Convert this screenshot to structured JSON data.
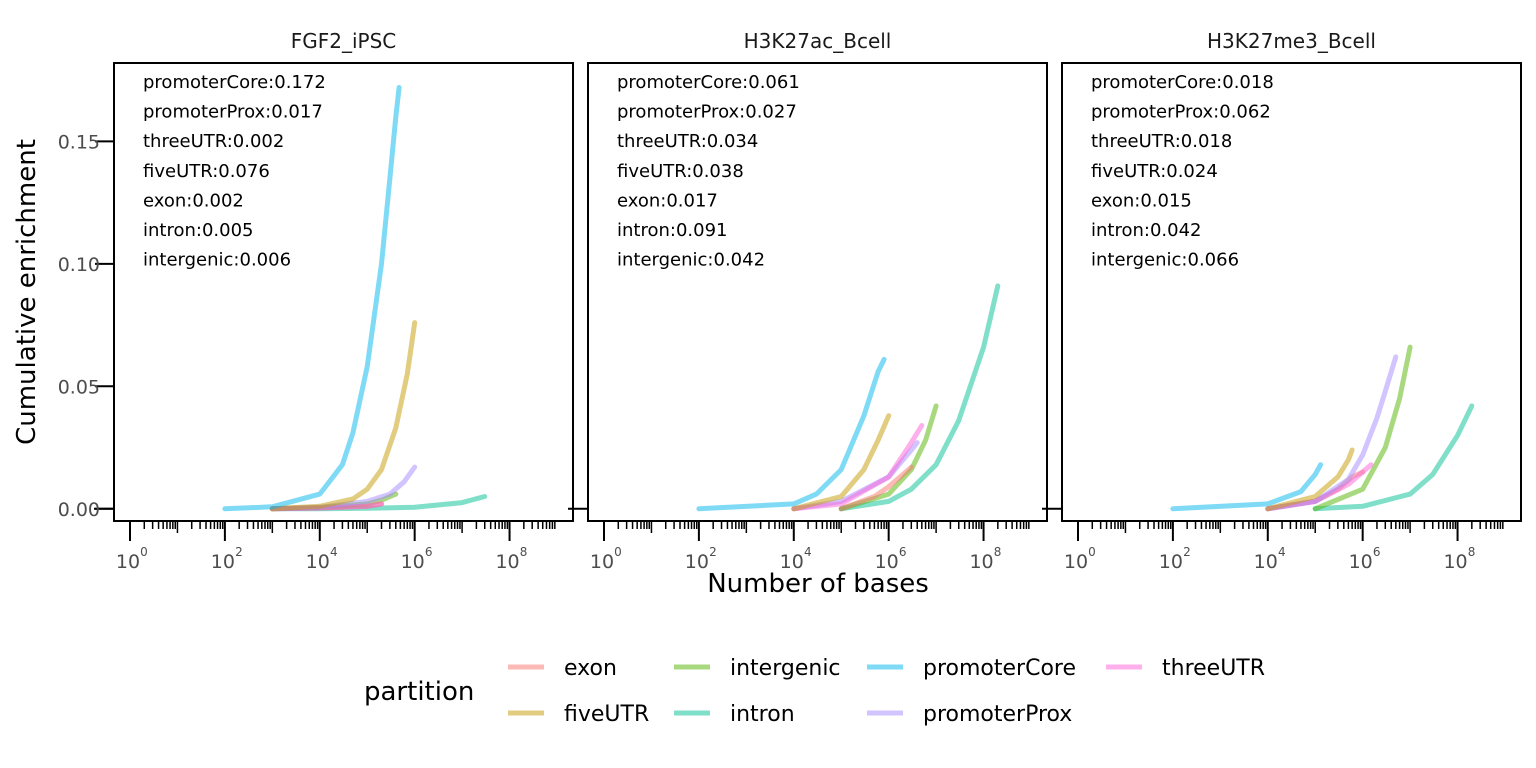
{
  "chart_data": {
    "type": "line",
    "xlabel": "Number of bases",
    "ylabel": "Cumulative enrichment",
    "x_scale": "log10",
    "xlim": [
      1,
      1000000000
    ],
    "ylim": [
      -0.005,
      0.182
    ],
    "x_ticks": [
      1,
      100,
      10000,
      1000000,
      100000000
    ],
    "x_tick_bases": [
      "10",
      "10",
      "10",
      "10",
      "10"
    ],
    "x_tick_exponents": [
      "0",
      "2",
      "4",
      "6",
      "8"
    ],
    "y_ticks": [
      0,
      0.05,
      0.1,
      0.15
    ],
    "y_tick_labels": [
      "0.00",
      "0.05",
      "0.10",
      "0.15"
    ],
    "grid": false,
    "legend": {
      "title": "partition",
      "position": "bottom",
      "entries": [
        {
          "name": "exon",
          "color": "#F8766D"
        },
        {
          "name": "fiveUTR",
          "color": "#C49A00"
        },
        {
          "name": "intergenic",
          "color": "#53B400"
        },
        {
          "name": "intron",
          "color": "#00C094"
        },
        {
          "name": "promoterCore",
          "color": "#00B6EB"
        },
        {
          "name": "promoterProx",
          "color": "#A58AFF"
        },
        {
          "name": "threeUTR",
          "color": "#FB61D7"
        }
      ]
    },
    "panels": [
      {
        "title": "FGF2_iPSC",
        "annotations": [
          "promoterCore:0.172",
          "promoterProx:0.017",
          "threeUTR:0.002",
          "fiveUTR:0.076",
          "exon:0.002",
          "intron:0.005",
          "intergenic:0.006"
        ],
        "series": [
          {
            "name": "intron",
            "x": [
              1000,
              10000,
              100000,
              1000000,
              10000000,
              30000000
            ],
            "y": [
              0,
              0,
              0.0002,
              0.0006,
              0.0025,
              0.005
            ]
          },
          {
            "name": "intergenic",
            "x": [
              1000,
              10000,
              100000,
              200000,
              400000
            ],
            "y": [
              0,
              0.0005,
              0.002,
              0.0035,
              0.006
            ]
          },
          {
            "name": "exon",
            "x": [
              1000,
              10000,
              100000,
              200000
            ],
            "y": [
              0,
              0.0003,
              0.001,
              0.002
            ]
          },
          {
            "name": "threeUTR",
            "x": [
              1000,
              10000,
              100000,
              200000
            ],
            "y": [
              0,
              0.0003,
              0.001,
              0.002
            ]
          },
          {
            "name": "promoterProx",
            "x": [
              1000,
              10000,
              100000,
              300000,
              600000,
              1000000
            ],
            "y": [
              0,
              0.0006,
              0.003,
              0.006,
              0.011,
              0.017
            ]
          },
          {
            "name": "fiveUTR",
            "x": [
              1000,
              10000,
              50000,
              100000,
              200000,
              400000,
              700000,
              1000000
            ],
            "y": [
              0,
              0.001,
              0.004,
              0.008,
              0.016,
              0.033,
              0.055,
              0.076
            ]
          },
          {
            "name": "promoterCore",
            "x": [
              100,
              1000,
              10000,
              30000,
              50000,
              100000,
              200000,
              300000,
              400000,
              470000
            ],
            "y": [
              0,
              0.0008,
              0.006,
              0.018,
              0.031,
              0.058,
              0.1,
              0.135,
              0.16,
              0.172
            ]
          }
        ]
      },
      {
        "title": "H3K27ac_Bcell",
        "annotations": [
          "promoterCore:0.061",
          "promoterProx:0.027",
          "threeUTR:0.034",
          "fiveUTR:0.038",
          "exon:0.017",
          "intron:0.091",
          "intergenic:0.042"
        ],
        "series": [
          {
            "name": "intron",
            "x": [
              100000,
              1000000,
              3000000,
              10000000,
              30000000,
              100000000,
              200000000
            ],
            "y": [
              0,
              0.003,
              0.008,
              0.018,
              0.036,
              0.066,
              0.091
            ]
          },
          {
            "name": "intergenic",
            "x": [
              100000,
              1000000,
              3000000,
              6000000,
              10000000
            ],
            "y": [
              0,
              0.006,
              0.016,
              0.028,
              0.042
            ]
          },
          {
            "name": "exon",
            "x": [
              100000,
              500000,
              1000000,
              2000000,
              3000000
            ],
            "y": [
              0,
              0.005,
              0.009,
              0.014,
              0.017
            ]
          },
          {
            "name": "promoterProx",
            "x": [
              10000,
              100000,
              1000000,
              3000000,
              4000000
            ],
            "y": [
              0,
              0.003,
              0.013,
              0.024,
              0.027
            ]
          },
          {
            "name": "threeUTR",
            "x": [
              10000,
              100000,
              1000000,
              3000000,
              5000000
            ],
            "y": [
              0,
              0.002,
              0.013,
              0.027,
              0.034
            ]
          },
          {
            "name": "fiveUTR",
            "x": [
              10000,
              100000,
              300000,
              600000,
              1000000
            ],
            "y": [
              0,
              0.005,
              0.016,
              0.028,
              0.038
            ]
          },
          {
            "name": "promoterCore",
            "x": [
              100,
              10000,
              30000,
              100000,
              300000,
              600000,
              800000
            ],
            "y": [
              0,
              0.002,
              0.006,
              0.016,
              0.038,
              0.056,
              0.061
            ]
          }
        ]
      },
      {
        "title": "H3K27me3_Bcell",
        "annotations": [
          "promoterCore:0.018",
          "promoterProx:0.062",
          "threeUTR:0.018",
          "fiveUTR:0.024",
          "exon:0.015",
          "intron:0.042",
          "intergenic:0.066"
        ],
        "series": [
          {
            "name": "intron",
            "x": [
              100000,
              1000000,
              10000000,
              30000000,
              100000000,
              200000000
            ],
            "y": [
              0,
              0.001,
              0.006,
              0.014,
              0.03,
              0.042
            ]
          },
          {
            "name": "intergenic",
            "x": [
              100000,
              1000000,
              3000000,
              6000000,
              10000000
            ],
            "y": [
              0,
              0.008,
              0.025,
              0.045,
              0.066
            ]
          },
          {
            "name": "exon",
            "x": [
              10000,
              100000,
              300000,
              600000,
              1000000
            ],
            "y": [
              0,
              0.003,
              0.008,
              0.013,
              0.015
            ]
          },
          {
            "name": "threeUTR",
            "x": [
              10000,
              100000,
              500000,
              1000000,
              1500000
            ],
            "y": [
              0,
              0.003,
              0.01,
              0.015,
              0.018
            ]
          },
          {
            "name": "promoterProx",
            "x": [
              10000,
              100000,
              500000,
              1000000,
              2000000,
              3000000,
              5000000
            ],
            "y": [
              0,
              0.003,
              0.012,
              0.022,
              0.037,
              0.048,
              0.062
            ]
          },
          {
            "name": "fiveUTR",
            "x": [
              10000,
              100000,
              300000,
              500000,
              600000
            ],
            "y": [
              0,
              0.005,
              0.013,
              0.02,
              0.024
            ]
          },
          {
            "name": "promoterCore",
            "x": [
              100,
              10000,
              50000,
              100000,
              130000
            ],
            "y": [
              0,
              0.002,
              0.007,
              0.014,
              0.018
            ]
          }
        ]
      }
    ]
  }
}
